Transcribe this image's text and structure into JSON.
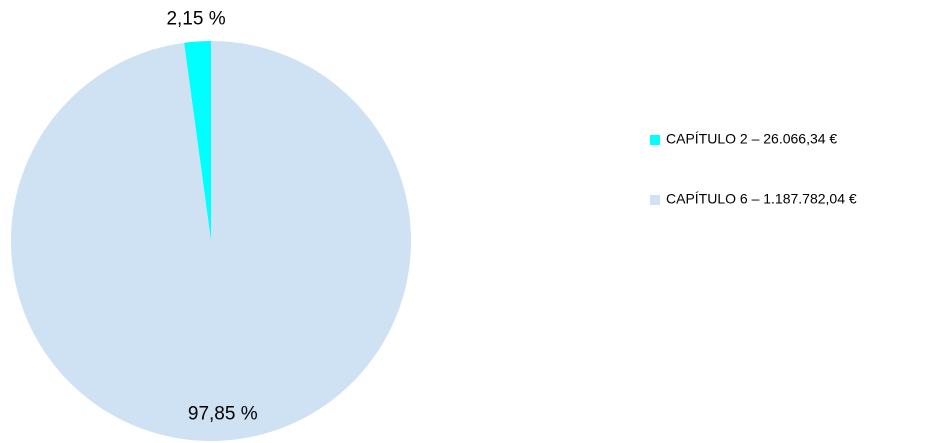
{
  "chart_data": {
    "type": "pie",
    "categories": [
      "CAPÍTULO 2 – 26.066,34 €",
      "CAPÍTULO 6 – 1.187.782,04 €"
    ],
    "values": [
      2.15,
      97.85
    ],
    "value_labels": [
      "2,15 %",
      "97,85 %"
    ],
    "colors": [
      "#00ffff",
      "#cfe2f3"
    ],
    "legend": "right"
  }
}
